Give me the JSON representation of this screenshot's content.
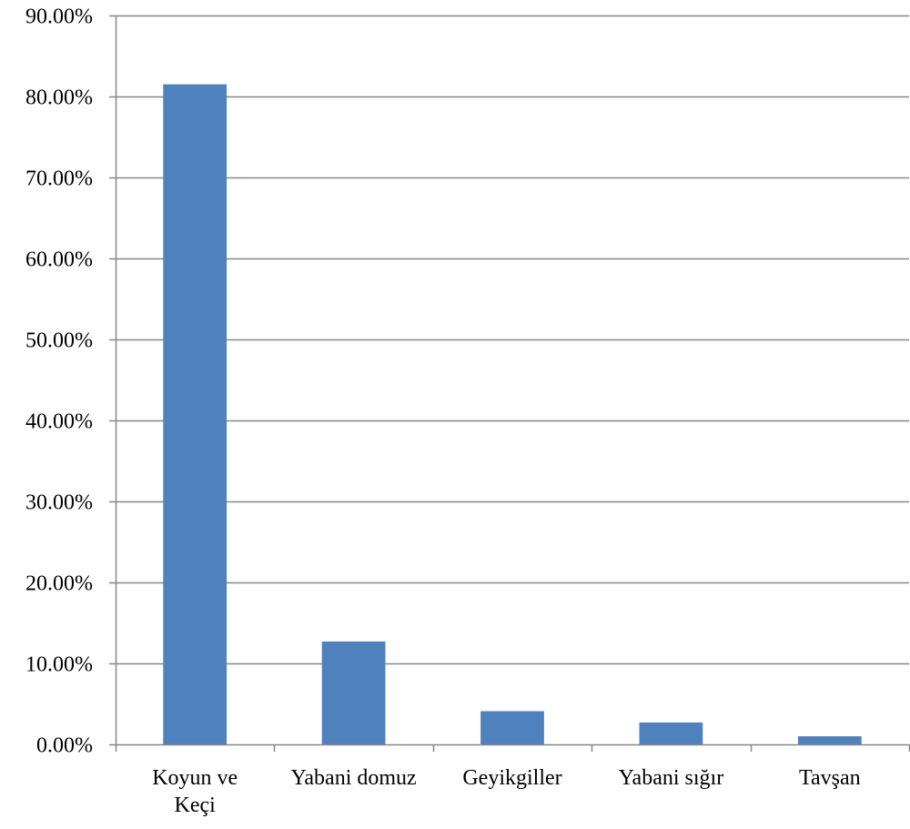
{
  "chart_data": {
    "type": "bar",
    "title": "",
    "xlabel": "",
    "ylabel": "",
    "categories": [
      [
        "Koyun ve",
        "Keçi"
      ],
      [
        "Yabani domuz"
      ],
      [
        "Geyikgiller"
      ],
      [
        "Yabani sığır"
      ],
      [
        "Tavşan"
      ]
    ],
    "values": [
      81.5,
      12.7,
      4.1,
      2.7,
      1.0
    ],
    "ylim": [
      0,
      90
    ],
    "yticks": [
      0,
      10,
      20,
      30,
      40,
      50,
      60,
      70,
      80,
      90
    ],
    "ytick_labels": [
      "0.00%",
      "10.00%",
      "20.00%",
      "30.00%",
      "40.00%",
      "50.00%",
      "60.00%",
      "70.00%",
      "80.00%",
      "90.00%"
    ],
    "grid": true,
    "legend": "none",
    "colors": {
      "bar": "#4F81BD",
      "grid": "#878787",
      "axis": "#878787"
    }
  }
}
